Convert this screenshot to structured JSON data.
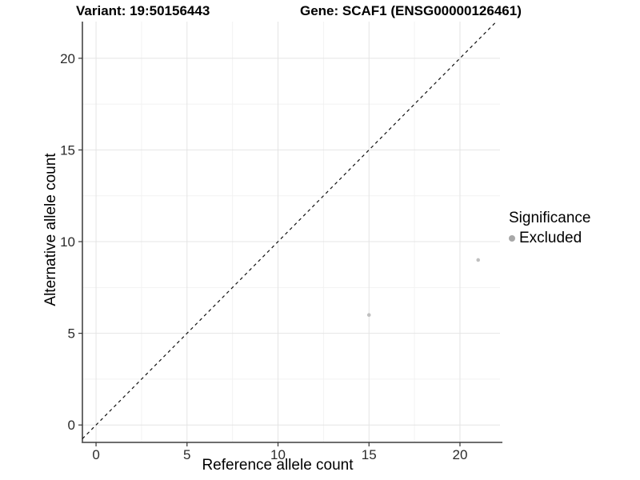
{
  "titles": {
    "left": "Variant: 19:50156443",
    "right": "Gene: SCAF1 (ENSG00000126461)"
  },
  "chart_data": {
    "type": "scatter",
    "xlabel": "Reference allele count",
    "ylabel": "Alternative allele count",
    "xlim": [
      -0.75,
      22.2
    ],
    "ylim": [
      -0.95,
      22.0
    ],
    "xticks": [
      0,
      5,
      10,
      15,
      20
    ],
    "yticks": [
      0,
      5,
      10,
      15,
      20
    ],
    "minor_ticks_x": [
      2.5,
      7.5,
      12.5,
      17.5
    ],
    "minor_ticks_y": [
      2.5,
      7.5,
      12.5,
      17.5
    ],
    "grid": "on",
    "identity_line": {
      "equation": "y = x",
      "style": "dashed",
      "color": "#111111"
    },
    "series": [
      {
        "name": "Excluded",
        "color": "#c0c0c0",
        "points": [
          {
            "x": 15,
            "y": 6
          },
          {
            "x": 21,
            "y": 9
          }
        ]
      }
    ],
    "legend": {
      "title": "Significance",
      "position": "right",
      "items": [
        {
          "label": "Excluded",
          "marker": "circle",
          "color": "#a8a8a8"
        }
      ]
    },
    "colors": {
      "grid_major": "#e4e4e4",
      "grid_minor": "#f2f2f2",
      "axis_line": "#5a5a5a",
      "tick_mark": "#333333",
      "tick_label": "#2b2b2b"
    }
  }
}
